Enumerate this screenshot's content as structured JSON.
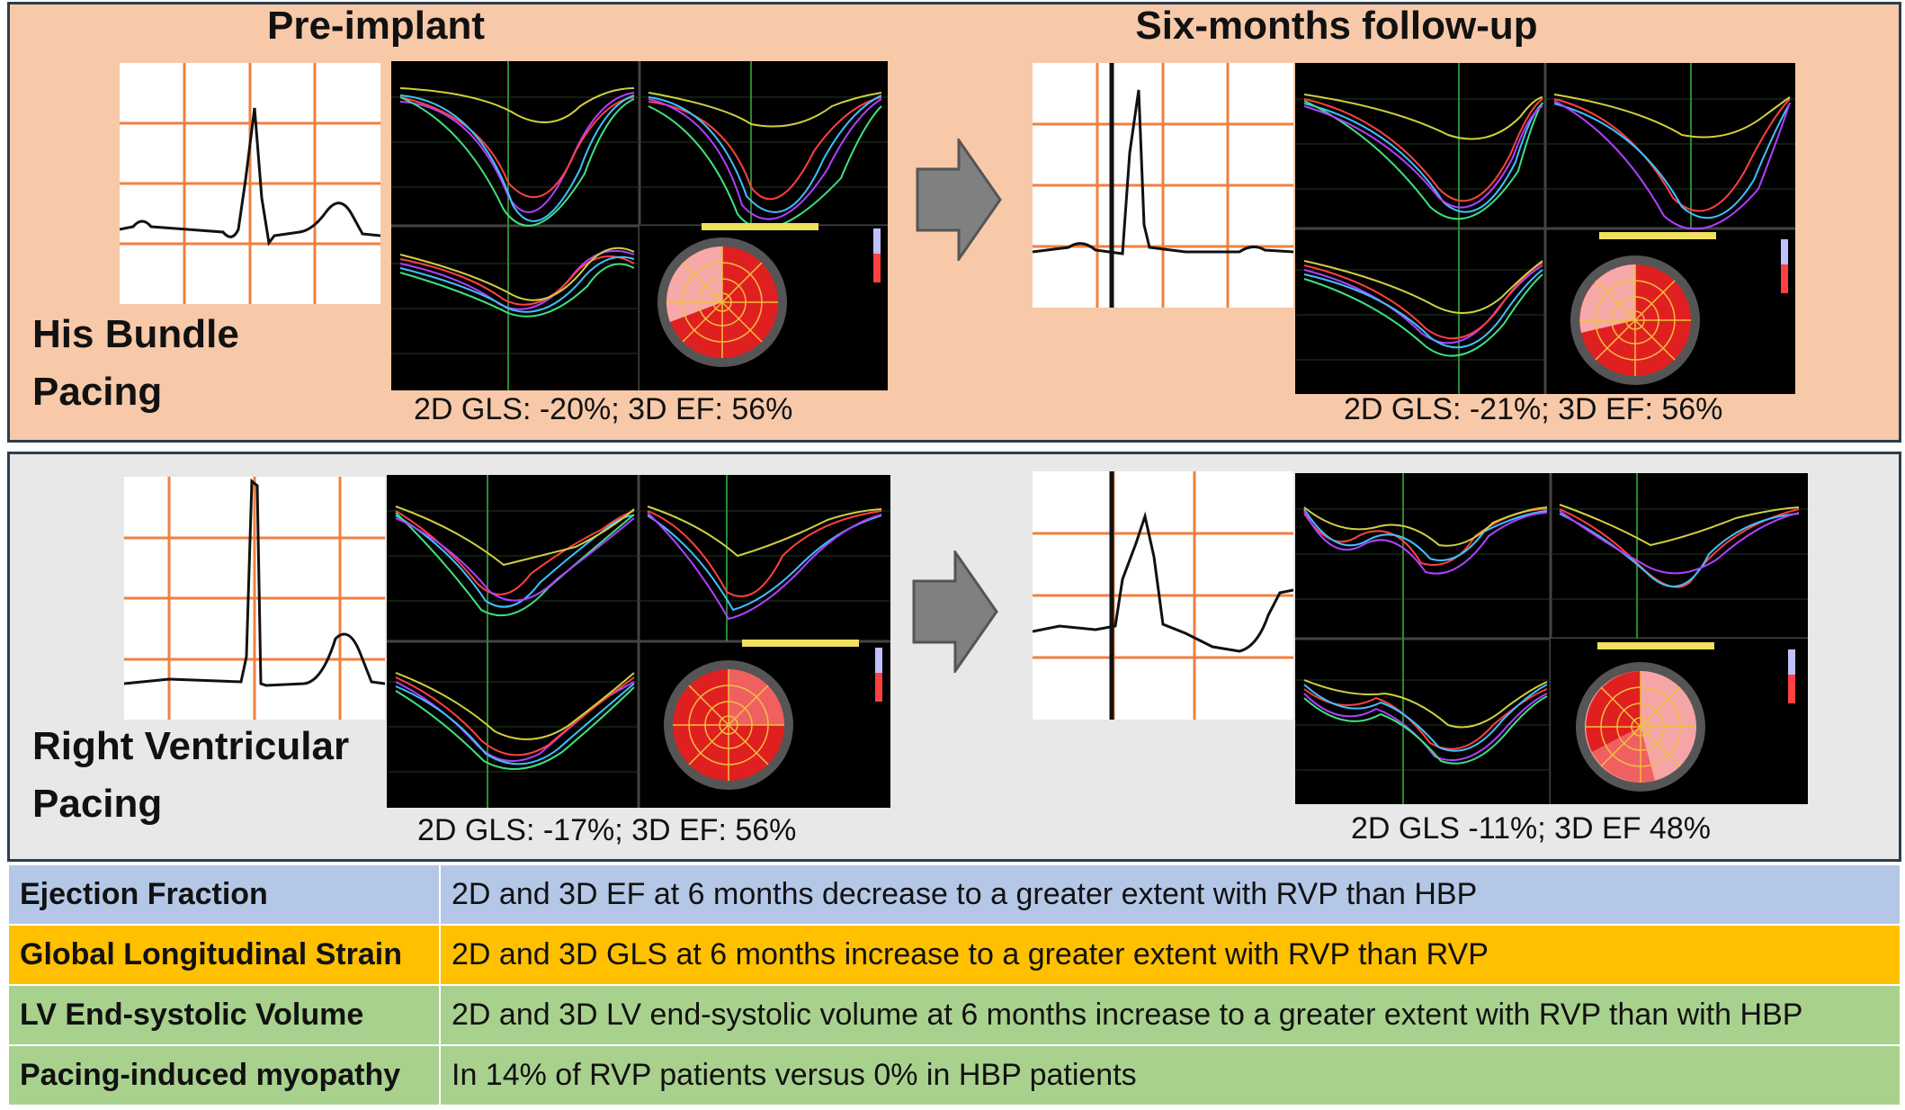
{
  "titles": {
    "pre": "Pre-implant",
    "post": "Six-months  follow-up"
  },
  "groups": [
    {
      "label_line1": "His Bundle",
      "label_line2": "Pacing",
      "pre_metric": "2D GLS: -20%;     3D EF: 56%",
      "post_metric": "2D GLS: -21%;     3D EF:  56%"
    },
    {
      "label_line1": "Right Ventricular",
      "label_line2": "Pacing",
      "pre_metric": "2D GLS: -17%;     3D EF: 56%",
      "post_metric": "2D GLS -11%;      3D EF 48%"
    }
  ],
  "table": [
    {
      "label": "Ejection Fraction",
      "text": "2D and 3D EF at 6 months decrease to a greater extent with RVP than HBP",
      "color": "#b4c7e7"
    },
    {
      "label": "Global Longitudinal Strain",
      "text": "2D and 3D GLS at 6 months increase to a greater extent with RVP than RVP",
      "color": "#ffc000"
    },
    {
      "label": "LV End-systolic Volume",
      "text": "2D and 3D LV end-systolic volume at 6 months increase to a greater extent with RVP than with HBP",
      "color": "#a9d18e"
    },
    {
      "label": "Pacing-induced myopathy",
      "text": "In 14% of RVP patients versus 0% in HBP patients",
      "color": "#a9d18e"
    }
  ],
  "colors": {
    "hbp_panel": "#f7c9a9",
    "rvp_panel": "#e8e8e8",
    "ecg_grid": "#f2a070",
    "arrow": "#808080"
  }
}
